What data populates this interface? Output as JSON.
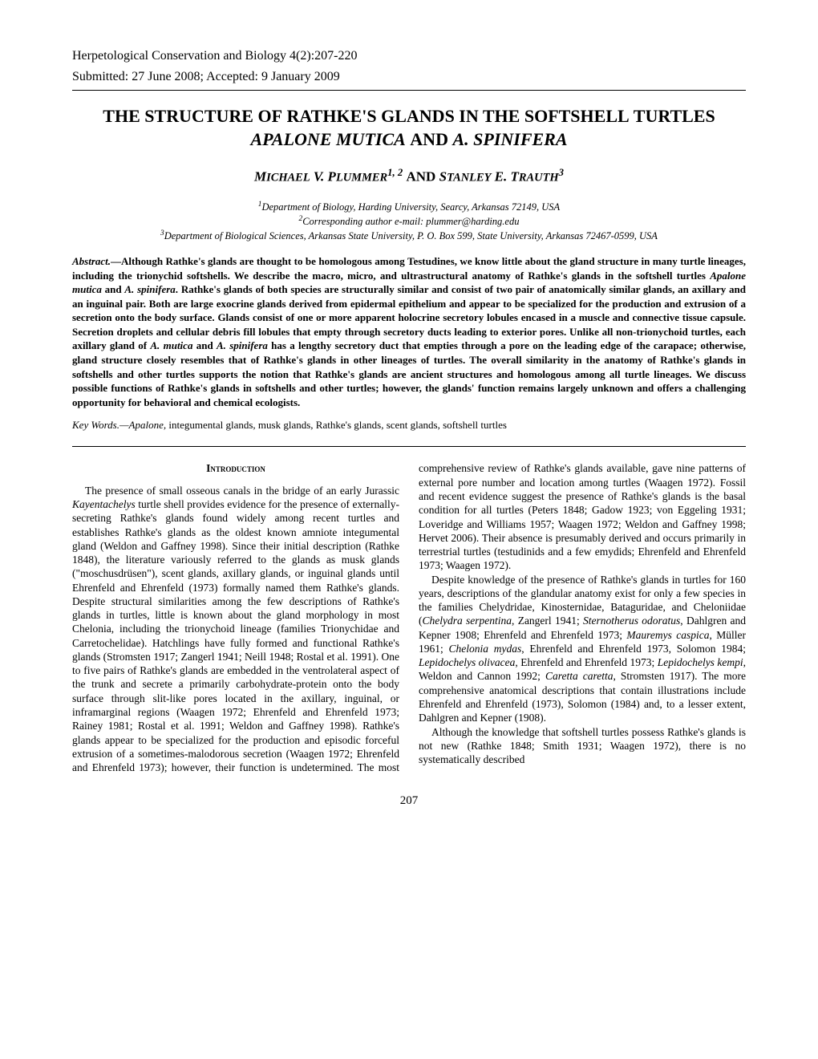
{
  "journal_line1": "Herpetological Conservation and Biology 4(2):207-220",
  "journal_line2": "Submitted:  27 June 2008; Accepted:  9 January 2009",
  "title_html": "T<span class='sc'>HE</span> S<span class='sc'>TRUCTURE OF</span> R<span class='sc'>ATHKE'S</span> G<span class='sc'>LANDS IN THE</span> S<span class='sc'>OFTSHELL</span> T<span class='sc'>URTLES</span> <span class='ital'>APALONE MUTICA</span> <span class='sc'>AND</span> <span class='ital'>A. SPINIFERA</span>",
  "authors_html": "M<span style='font-size:0.85em'>ICHAEL</span> V. P<span style='font-size:0.85em'>LUMMER</span><sup>1, 2</sup> <span style='font-style:normal'>AND</span> S<span style='font-size:0.85em'>TANLEY</span> E. T<span style='font-size:0.85em'>RAUTH</span><sup>3</sup>",
  "affil1": "<sup>1</sup>Department of Biology, Harding University, Searcy, Arkansas 72149, USA",
  "affil2": "<sup>2</sup>Corresponding author e-mail: plummer@harding.edu",
  "affil3": "<sup>3</sup>Department of Biological Sciences, Arkansas State University, P. O. Box 599, State University, Arkansas 72467-0599, USA",
  "abstract_label": "Abstract.",
  "abstract_text": "—Although Rathke's glands are thought to be homologous among Testudines, we know little about the gland structure in many turtle lineages, including the trionychid softshells.  We describe the macro, micro, and ultrastructural anatomy of Rathke's glands in the softshell turtles <span class='ital'>Apalone mutica</span> and <span class='ital'>A. spinifera</span>.  Rathke's glands of both species are structurally similar and consist of two pair of anatomically similar glands, an axillary and an inguinal pair.  Both are large exocrine glands derived from epidermal epithelium and appear to be specialized for the production and extrusion of a secretion onto the body surface.  Glands consist of one or more apparent holocrine secretory lobules encased in a muscle and connective tissue capsule.  Secretion droplets and cellular debris fill lobules that empty through secretory ducts leading to exterior pores.  Unlike all non-trionychoid turtles, each axillary gland of <span class='ital'>A. mutica</span> and <span class='ital'>A. spinifera</span> has a lengthy secretory duct that empties through a pore on the leading edge of the carapace; otherwise, gland structure closely resembles that of Rathke's glands in other lineages of turtles.  The overall similarity in the anatomy of Rathke's glands in softshells and other turtles supports the notion that Rathke's glands are ancient structures and homologous among all turtle lineages.  We discuss possible functions of Rathke's glands in softshells and other turtles; however, the glands' function remains largely unknown and offers a challenging opportunity for behavioral and chemical ecologists.",
  "keywords_label": "Key Words.—Apalone,",
  "keywords_text": " integumental glands, musk glands, Rathke's glands, scent glands, softshell turtles",
  "intro_head": "Introduction",
  "intro_p1": "The presence of small osseous canals in the bridge of an early Jurassic <span class='ital'>Kayentachelys</span> turtle shell provides evidence for the presence of externally-secreting Rathke's glands found widely among recent turtles and establishes Rathke's glands as the oldest known amniote integumental gland (Weldon and Gaffney 1998).  Since their initial description (Rathke 1848), the literature variously referred to the glands as musk glands (\"moschusdrüsen\"), scent glands, axillary glands, or inguinal glands until Ehrenfeld and Ehrenfeld (1973) formally named them Rathke's glands.  Despite structural similarities among the few descriptions of Rathke's glands in turtles, little is known about the gland morphology in most Chelonia, including the trionychoid lineage (families Trionychidae and Carretochelidae).  Hatchlings have fully formed and functional Rathke's glands (Stromsten 1917; Zangerl 1941; Neill 1948; Rostal et al. 1991).  One to five pairs of Rathke's glands are embedded in the ventrolateral aspect of the trunk and secrete a primarily carbohydrate-protein onto the body surface through slit-like pores located in the axillary, inguinal, or inframarginal regions (Waagen 1972; Ehrenfeld and Ehrenfeld 1973; Rainey 1981; Rostal et al. 1991; Weldon and Gaffney 1998).  Rathke's glands appear to be specialized for the production and episodic forceful extrusion of a sometimes-malodorous secretion (Waagen 1972; Ehrenfeld and Ehrenfeld 1973); however, their function is undetermined.  The most comprehensive review of Rathke's glands available, gave nine patterns of external pore number and location among turtles (Waagen 1972).  Fossil and recent evidence suggest the presence of Rathke's glands is the basal condition for all turtles (Peters 1848; Gadow 1923; von Eggeling 1931; Loveridge and Williams 1957; Waagen 1972; Weldon and Gaffney 1998; Hervet 2006).  Their absence is presumably derived and occurs primarily in terrestrial turtles (testudinids and a few emydids; Ehrenfeld and Ehrenfeld 1973; Waagen 1972).",
  "intro_p2": "Despite knowledge of the presence of Rathke's glands in turtles for 160 years, descriptions of the glandular anatomy exist for only a few species in the families Chelydridae, Kinosternidae, Bataguridae, and Cheloniidae (<span class='ital'>Chelydra serpentina</span>, Zangerl 1941; <span class='ital'>Sternotherus odoratus</span>, Dahlgren and Kepner 1908; Ehrenfeld and Ehrenfeld 1973; <span class='ital'>Mauremys caspica</span>, Müller 1961; <span class='ital'>Chelonia mydas</span>, Ehrenfeld and Ehrenfeld 1973, Solomon 1984; <span class='ital'>Lepidochelys olivacea</span>, Ehrenfeld and Ehrenfeld 1973; <span class='ital'>Lepidochelys kempi</span>, Weldon and Cannon 1992; <span class='ital'>Caretta caretta</span>, Stromsten 1917).  The more comprehensive anatomical descriptions that contain illustrations include Ehrenfeld and Ehrenfeld (1973), Solomon (1984) and, to a lesser extent, Dahlgren and Kepner (1908).",
  "intro_p3": "Although the knowledge that softshell turtles possess Rathke's glands is not new (Rathke 1848; Smith 1931; Waagen 1972), there is no systematically described",
  "page_number": "207"
}
